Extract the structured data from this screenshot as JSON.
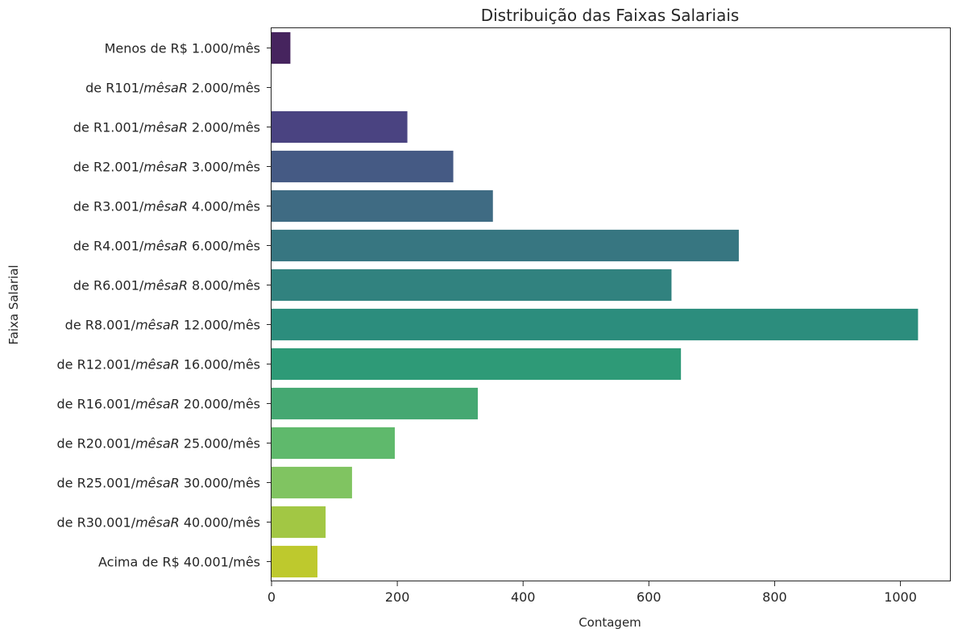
{
  "chart_data": {
    "type": "bar",
    "orientation": "horizontal",
    "title": "Distribuição das Faixas Salariais",
    "xlabel": "Contagem",
    "ylabel": "Faixa Salarial",
    "xlim": [
      0,
      1080
    ],
    "xticks": [
      0,
      200,
      400,
      600,
      800,
      1000
    ],
    "grid": false,
    "categories": [
      {
        "pre": "Menos de R$ 1.000/mês",
        "it": "",
        "post": ""
      },
      {
        "pre": "de R101/",
        "it": "mêsaR",
        "post": " 2.000/mês"
      },
      {
        "pre": "de R1.001/",
        "it": "mêsaR",
        "post": " 2.000/mês"
      },
      {
        "pre": "de R2.001/",
        "it": "mêsaR",
        "post": " 3.000/mês"
      },
      {
        "pre": "de R3.001/",
        "it": "mêsaR",
        "post": " 4.000/mês"
      },
      {
        "pre": "de R4.001/",
        "it": "mêsaR",
        "post": " 6.000/mês"
      },
      {
        "pre": "de R6.001/",
        "it": "mêsaR",
        "post": " 8.000/mês"
      },
      {
        "pre": "de R8.001/",
        "it": "mêsaR",
        "post": " 12.000/mês"
      },
      {
        "pre": "de R12.001/",
        "it": "mêsaR",
        "post": " 16.000/mês"
      },
      {
        "pre": "de R16.001/",
        "it": "mêsaR",
        "post": " 20.000/mês"
      },
      {
        "pre": "de R20.001/",
        "it": "mêsaR",
        "post": " 25.000/mês"
      },
      {
        "pre": "de R25.001/",
        "it": "mêsaR",
        "post": " 30.000/mês"
      },
      {
        "pre": "de R30.001/",
        "it": "mêsaR",
        "post": " 40.000/mês"
      },
      {
        "pre": "Acima de R$ 40.001/mês",
        "it": "",
        "post": ""
      }
    ],
    "values": [
      30,
      0,
      216,
      289,
      352,
      743,
      636,
      1028,
      651,
      328,
      196,
      128,
      86,
      73
    ],
    "colors": [
      "#46245e",
      "#482576",
      "#4a4381",
      "#455a84",
      "#3f6b83",
      "#377681",
      "#31827f",
      "#2c8d7d",
      "#2e9a77",
      "#45a872",
      "#5fb96c",
      "#80c461",
      "#a2c744",
      "#bec92d"
    ]
  }
}
